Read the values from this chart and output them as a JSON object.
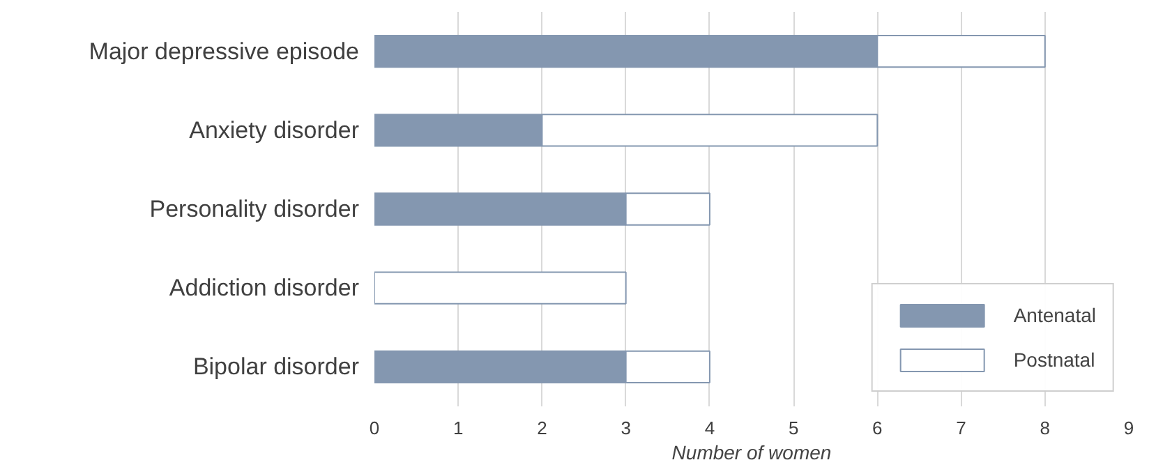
{
  "chart_data": {
    "type": "bar",
    "orientation": "horizontal",
    "stacked": true,
    "categories": [
      "Major depressive episode",
      "Anxiety disorder",
      "Personality disorder",
      "Addiction disorder",
      "Bipolar disorder"
    ],
    "series": [
      {
        "name": "Antenatal",
        "color": "#8497b0",
        "values": [
          6,
          2,
          3,
          0,
          3
        ]
      },
      {
        "name": "Postnatal",
        "color": "#ffffff",
        "values": [
          2,
          4,
          1,
          3,
          1
        ]
      }
    ],
    "xlabel": "Number of women",
    "xlim": [
      0,
      9
    ],
    "xticks": [
      0,
      1,
      2,
      3,
      4,
      5,
      6,
      7,
      8,
      9
    ],
    "grid": "x",
    "legend": "bottom right"
  }
}
